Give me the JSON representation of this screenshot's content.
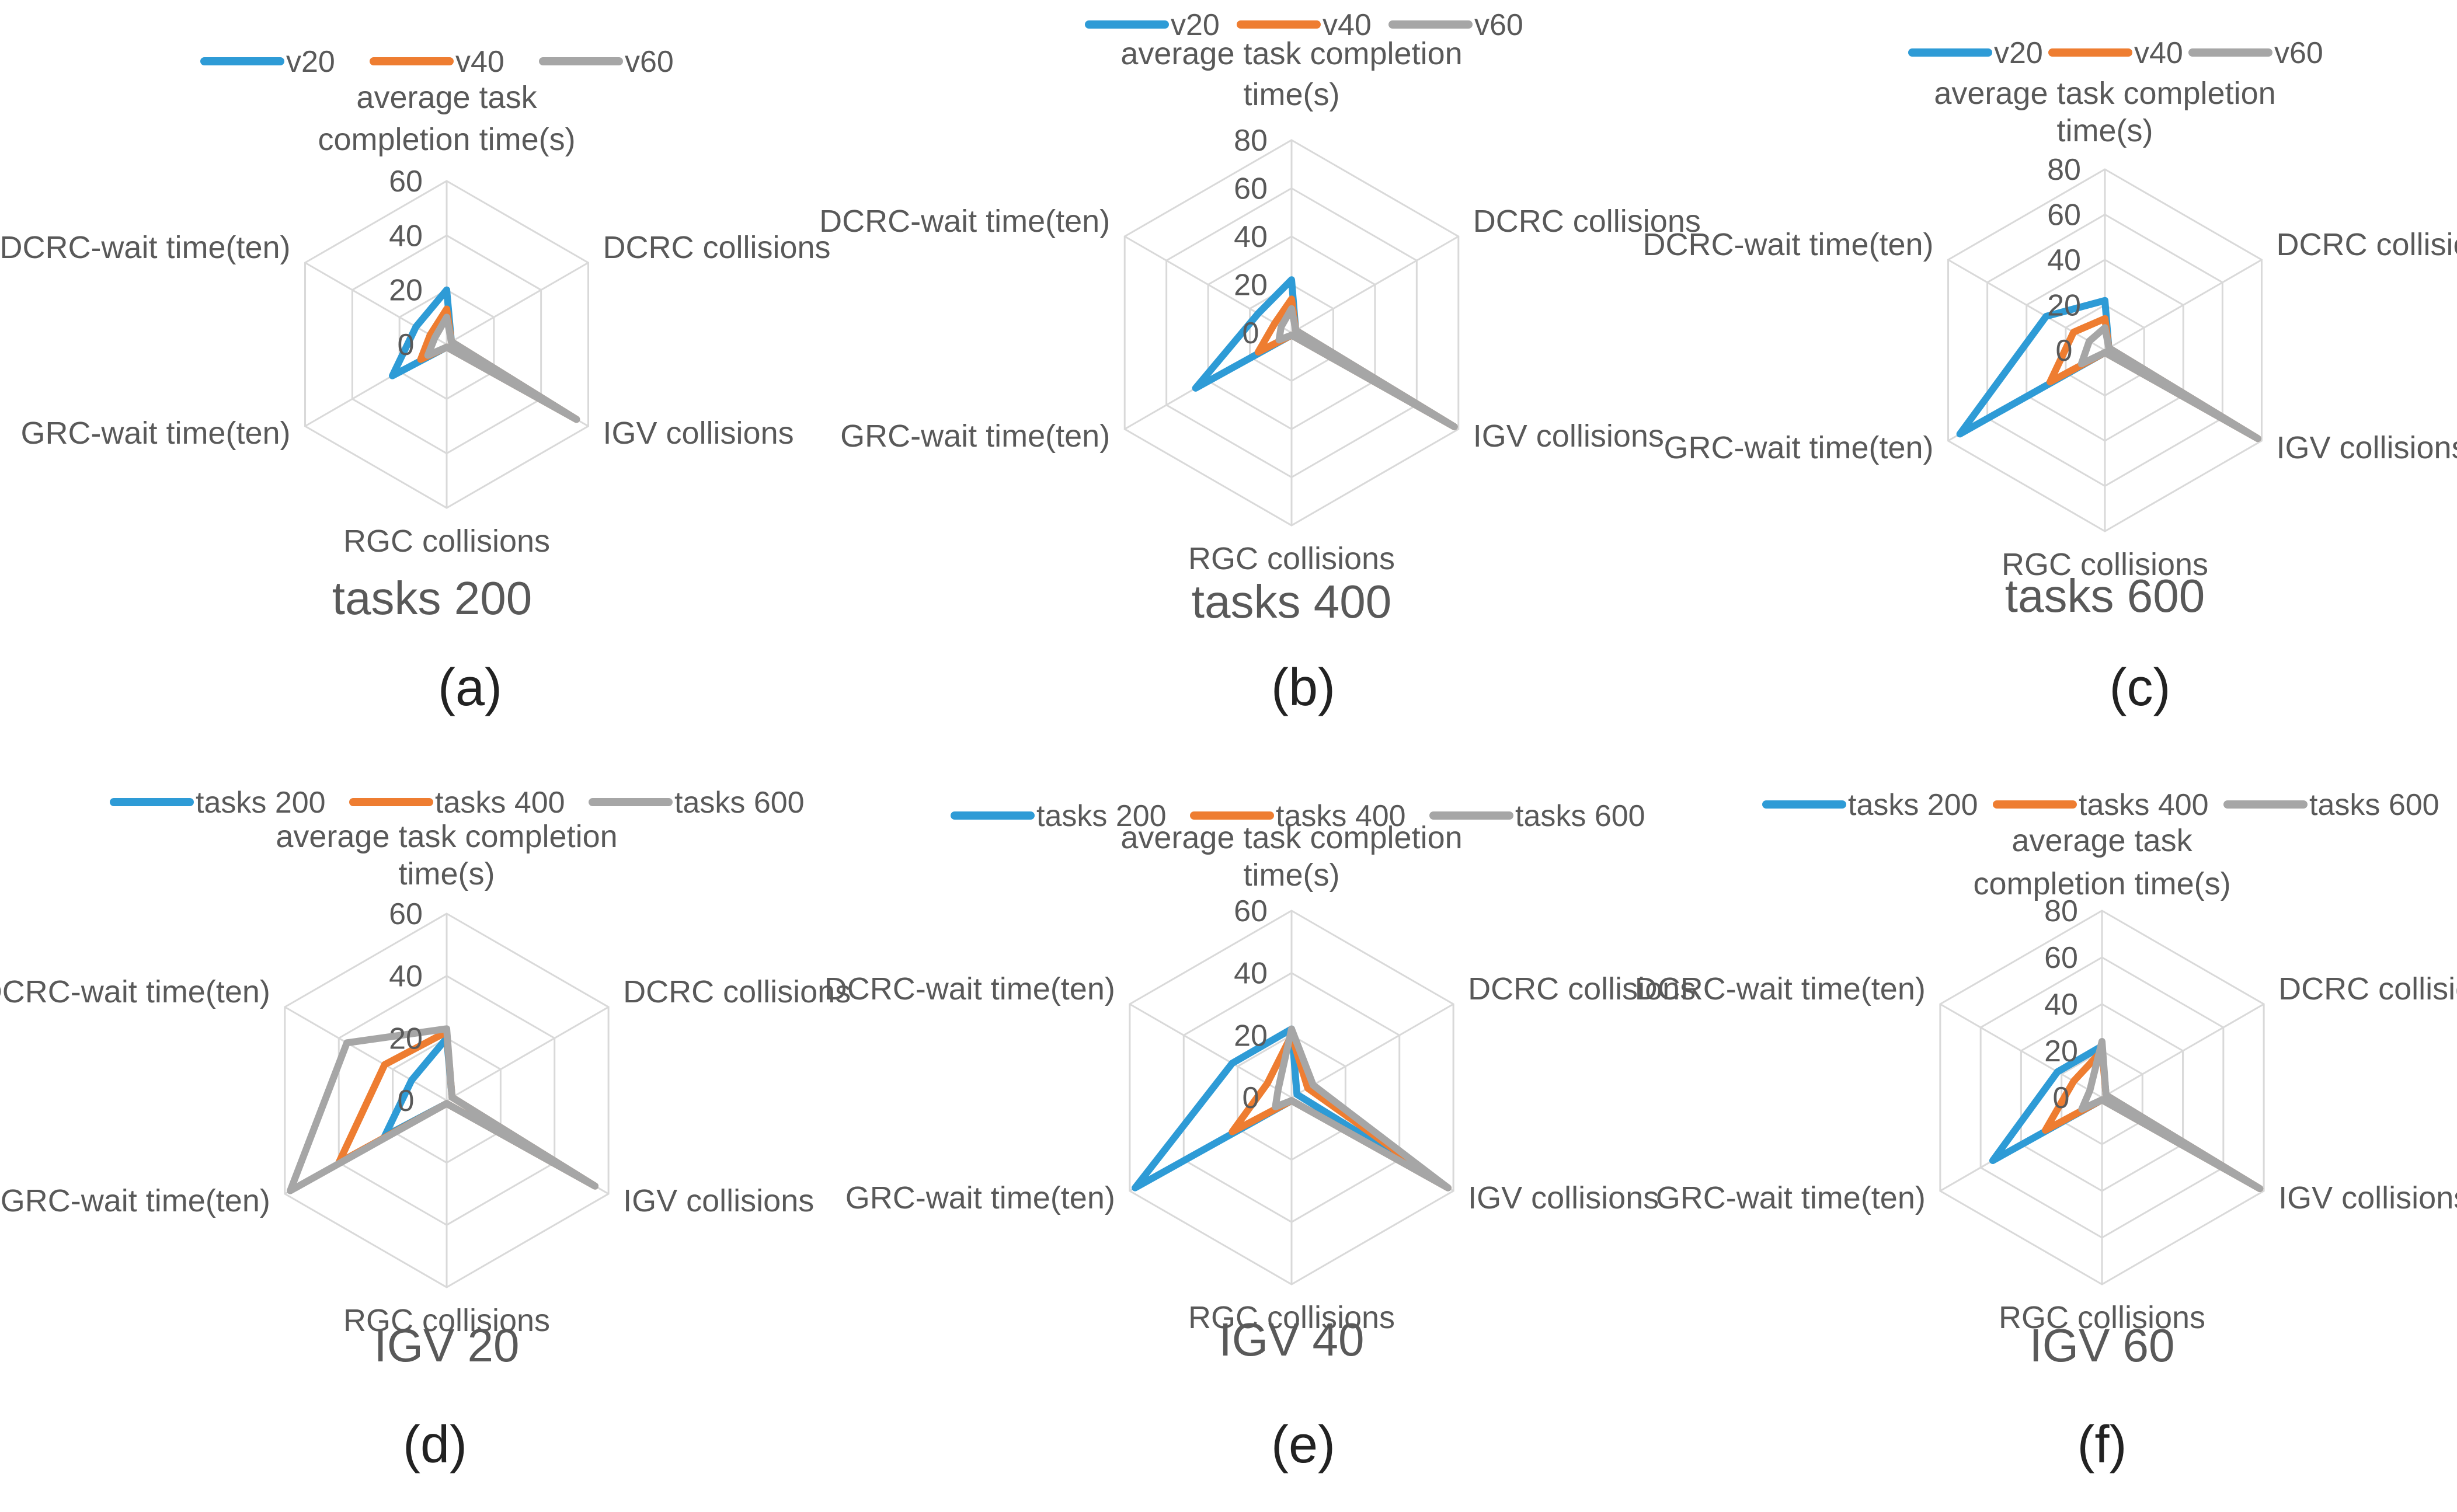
{
  "figure": {
    "colors": {
      "blue": "#2e9bd6",
      "orange": "#ee7d31",
      "gray": "#a6a6a6",
      "grid": "#d9d9d9",
      "text": "#595959",
      "caption": "#222222"
    }
  },
  "chart_data": [
    {
      "type": "radar",
      "panel_label": "(a)",
      "title": "tasks 200",
      "axes": [
        "average task completion time(s)",
        "DCRC collisions",
        "IGV collisions",
        "RGC collisions",
        "GRC-wait time(ten)",
        "DCRC-wait time(ten)"
      ],
      "axis_label_lines": [
        [
          "average task",
          "completion time(s)"
        ],
        [
          "DCRC collisions"
        ],
        [
          "IGV collisions"
        ],
        [
          "RGC collisions"
        ],
        [
          "GRC-wait time(ten)"
        ],
        [
          "DCRC-wait time(ten)"
        ]
      ],
      "rlim": [
        0,
        60
      ],
      "ticks": [
        0,
        20,
        40,
        60
      ],
      "legend_position": "top",
      "series": [
        {
          "name": "v20",
          "color": "#2e9bd6",
          "values": [
            20,
            2,
            55,
            1,
            23,
            13
          ]
        },
        {
          "name": "v40",
          "color": "#ee7d31",
          "values": [
            13,
            2,
            55,
            1,
            11,
            7
          ]
        },
        {
          "name": "v60",
          "color": "#a6a6a6",
          "values": [
            10,
            2,
            55,
            1,
            8,
            5
          ]
        }
      ]
    },
    {
      "type": "radar",
      "panel_label": "(b)",
      "title": "tasks 400",
      "axes": [
        "average task completion time(s)",
        "DCRC collisions",
        "IGV collisions",
        "RGC collisions",
        "GRC-wait time(ten)",
        "DCRC-wait time(ten)"
      ],
      "axis_label_lines": [
        [
          "average task completion",
          "time(s)"
        ],
        [
          "DCRC collisions"
        ],
        [
          "IGV collisions"
        ],
        [
          "RGC collisions"
        ],
        [
          "GRC-wait time(ten)"
        ],
        [
          "DCRC-wait time(ten)"
        ]
      ],
      "rlim": [
        0,
        80
      ],
      "ticks": [
        0,
        20,
        40,
        60,
        80
      ],
      "legend_position": "top",
      "series": [
        {
          "name": "v20",
          "color": "#2e9bd6",
          "values": [
            22,
            2,
            78,
            1,
            46,
            16
          ]
        },
        {
          "name": "v40",
          "color": "#ee7d31",
          "values": [
            14,
            2,
            78,
            1,
            16,
            8
          ]
        },
        {
          "name": "v60",
          "color": "#a6a6a6",
          "values": [
            10,
            2,
            78,
            1,
            6,
            5
          ]
        }
      ]
    },
    {
      "type": "radar",
      "panel_label": "(c)",
      "title": "tasks 600",
      "axes": [
        "average task completion time(s)",
        "DCRC collisions",
        "IGV collisions",
        "RGC collisions",
        "GRC-wait time(ten)",
        "DCRC-wait time(ten)"
      ],
      "axis_label_lines": [
        [
          "average task completion",
          "time(s)"
        ],
        [
          "DCRC collisions"
        ],
        [
          "IGV collisions"
        ],
        [
          "RGC collisions"
        ],
        [
          "GRC-wait time(ten)"
        ],
        [
          "DCRC-wait time(ten)"
        ]
      ],
      "rlim": [
        0,
        80
      ],
      "ticks": [
        0,
        20,
        40,
        60,
        80
      ],
      "legend_position": "top",
      "series": [
        {
          "name": "v20",
          "color": "#2e9bd6",
          "values": [
            22,
            2,
            78,
            1,
            74,
            30
          ]
        },
        {
          "name": "v40",
          "color": "#ee7d31",
          "values": [
            14,
            2,
            78,
            1,
            28,
            16
          ]
        },
        {
          "name": "v60",
          "color": "#a6a6a6",
          "values": [
            10,
            2,
            78,
            1,
            12,
            8
          ]
        }
      ]
    },
    {
      "type": "radar",
      "panel_label": "(d)",
      "title": "IGV 20",
      "axes": [
        "average task completion time(s)",
        "DCRC collisions",
        "IGV collisions",
        "RGC collisions",
        "GRC-wait time(ten)",
        "DCRC-wait time(ten)"
      ],
      "axis_label_lines": [
        [
          "average task completion",
          "time(s)"
        ],
        [
          "DCRC collisions"
        ],
        [
          "IGV collisions"
        ],
        [
          "RGC collisions"
        ],
        [
          "GRC-wait time(ten)"
        ],
        [
          "DCRC-wait time(ten)"
        ]
      ],
      "rlim": [
        0,
        60
      ],
      "ticks": [
        0,
        20,
        40,
        60
      ],
      "legend_position": "top",
      "series": [
        {
          "name": "tasks 200",
          "color": "#2e9bd6",
          "values": [
            20,
            2,
            55,
            1,
            23,
            13
          ]
        },
        {
          "name": "tasks 400",
          "color": "#ee7d31",
          "values": [
            22,
            2,
            55,
            1,
            40,
            23
          ]
        },
        {
          "name": "tasks 600",
          "color": "#a6a6a6",
          "values": [
            23,
            2,
            55,
            1,
            58,
            37
          ]
        }
      ]
    },
    {
      "type": "radar",
      "panel_label": "(e)",
      "title": "IGV 40",
      "axes": [
        "average task completion time(s)",
        "DCRC collisions",
        "IGV collisions",
        "RGC collisions",
        "GRC-wait time(ten)",
        "DCRC-wait time(ten)"
      ],
      "axis_label_lines": [
        [
          "average task completion",
          "time(s)"
        ],
        [
          "DCRC collisions"
        ],
        [
          "IGV collisions"
        ],
        [
          "RGC collisions"
        ],
        [
          "GRC-wait time(ten)"
        ],
        [
          "DCRC-wait time(ten)"
        ]
      ],
      "rlim": [
        0,
        60
      ],
      "ticks": [
        0,
        20,
        40,
        60
      ],
      "legend_position": "top",
      "series": [
        {
          "name": "tasks 200",
          "color": "#2e9bd6",
          "values": [
            22,
            2,
            58,
            1,
            58,
            22
          ]
        },
        {
          "name": "tasks 400",
          "color": "#ee7d31",
          "values": [
            20,
            6,
            58,
            1,
            22,
            9
          ]
        },
        {
          "name": "tasks 600",
          "color": "#a6a6a6",
          "values": [
            22,
            8,
            58,
            1,
            6,
            5
          ]
        }
      ]
    },
    {
      "type": "radar",
      "panel_label": "(f)",
      "title": "IGV 60",
      "axes": [
        "average task completion time(s)",
        "DCRC collisions",
        "IGV collisions",
        "RGC collisions",
        "GRC-wait time(ten)",
        "DCRC-wait time(ten)"
      ],
      "axis_label_lines": [
        [
          "average task",
          "completion time(s)"
        ],
        [
          "DCRC collisions"
        ],
        [
          "IGV collisions"
        ],
        [
          "RGC collisions"
        ],
        [
          "GRC-wait time(ten)"
        ],
        [
          "DCRC-wait time(ten)"
        ]
      ],
      "rlim": [
        0,
        80
      ],
      "ticks": [
        0,
        20,
        40,
        60,
        80
      ],
      "legend_position": "top",
      "series": [
        {
          "name": "tasks 200",
          "color": "#2e9bd6",
          "values": [
            22,
            2,
            78,
            1,
            54,
            22
          ]
        },
        {
          "name": "tasks 400",
          "color": "#ee7d31",
          "values": [
            20,
            2,
            78,
            1,
            28,
            14
          ]
        },
        {
          "name": "tasks 600",
          "color": "#a6a6a6",
          "values": [
            24,
            2,
            78,
            1,
            10,
            6
          ]
        }
      ]
    }
  ]
}
